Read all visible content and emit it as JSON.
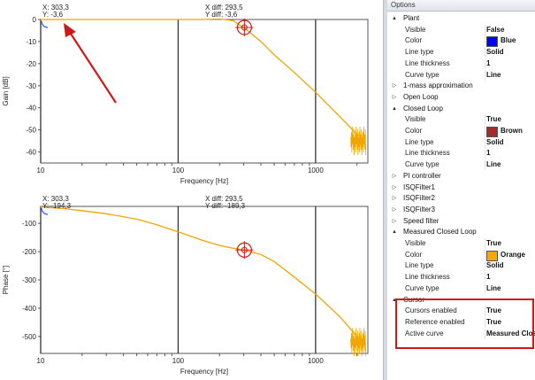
{
  "gain_plot": {
    "ylabel": "Gain [dB]",
    "xlabel": "Frequency [Hz]",
    "cursor_x": "X: 303,3",
    "cursor_y": "Y: -3,6",
    "diff_x": "X diff: 293,5",
    "diff_y": "Y diff: -3,6",
    "y_ticks": [
      "0",
      "-10",
      "-20",
      "-30",
      "-40",
      "-50",
      "-60"
    ],
    "x_ticks": [
      "10",
      "100",
      "1000"
    ]
  },
  "phase_plot": {
    "ylabel": "Phase [°]",
    "xlabel": "Frequency [Hz]",
    "cursor_x": "X: 303,3",
    "cursor_y": "Y: -194,3",
    "diff_x": "X diff: 293,5",
    "diff_y": "Y diff: -189,3",
    "y_ticks": [
      "-100",
      "-200",
      "-300",
      "-400",
      "-500"
    ],
    "x_ticks": [
      "10",
      "100",
      "1000"
    ]
  },
  "chart_data": [
    {
      "type": "line",
      "ylabel": "Gain [dB]",
      "xlabel": "Frequency [Hz]",
      "xscale": "log",
      "xlim": [
        10,
        2400
      ],
      "ylim": [
        -65,
        0
      ],
      "grid": "vertical at decades",
      "series": [
        {
          "color": "#f0a500",
          "x": [
            10,
            20,
            50,
            100,
            150,
            200,
            250,
            300,
            400,
            500,
            700,
            1000,
            1500,
            2000,
            2300
          ],
          "y": [
            0,
            0,
            0,
            0,
            0,
            0.2,
            -0.5,
            -3.6,
            -10,
            -16,
            -24,
            -33,
            -44,
            -52,
            -55
          ]
        }
      ],
      "annotations": [
        "X: 303,3",
        "Y: -3,6",
        "X diff: 293,5",
        "Y diff: -3,6"
      ]
    },
    {
      "type": "line",
      "ylabel": "Phase [°]",
      "xlabel": "Frequency [Hz]",
      "xscale": "log",
      "xlim": [
        10,
        2400
      ],
      "ylim": [
        -560,
        -40
      ],
      "grid": "vertical at decades",
      "series": [
        {
          "color": "#f0a500",
          "x": [
            10,
            15,
            20,
            30,
            50,
            70,
            100,
            150,
            200,
            250,
            300,
            400,
            500,
            700,
            1000,
            1500,
            2000,
            2300
          ],
          "y": [
            -42,
            -48,
            -55,
            -66,
            -85,
            -105,
            -130,
            -160,
            -178,
            -188,
            -194,
            -210,
            -235,
            -290,
            -350,
            -430,
            -500,
            -520
          ]
        }
      ],
      "annotations": [
        "X: 303,3",
        "Y: -194,3",
        "X diff: 293,5",
        "Y diff: -189,3"
      ]
    }
  ],
  "colors": {
    "curve": "#f0a500",
    "cursor": "#d01818",
    "arrow": "#d01818",
    "grid": "#333333"
  },
  "options": {
    "title": "Options",
    "rows": [
      {
        "kind": "cat",
        "toggle": "▲",
        "label": "Plant"
      },
      {
        "kind": "prop",
        "name": "Visible",
        "value": "False"
      },
      {
        "kind": "color",
        "name": "Color",
        "value": "Blue",
        "swatch": "#0000ff"
      },
      {
        "kind": "prop",
        "name": "Line type",
        "value": "Solid"
      },
      {
        "kind": "prop",
        "name": "Line thickness",
        "value": "1"
      },
      {
        "kind": "prop",
        "name": "Curve type",
        "value": "Line"
      },
      {
        "kind": "cat",
        "toggle": "▷",
        "label": "1-mass approximation"
      },
      {
        "kind": "cat",
        "toggle": "▷",
        "label": "Open Loop"
      },
      {
        "kind": "cat",
        "toggle": "▲",
        "label": "Closed Loop"
      },
      {
        "kind": "prop",
        "name": "Visible",
        "value": "True"
      },
      {
        "kind": "color",
        "name": "Color",
        "value": "Brown",
        "swatch": "#a52a2a"
      },
      {
        "kind": "prop",
        "name": "Line type",
        "value": "Solid"
      },
      {
        "kind": "prop",
        "name": "Line thickness",
        "value": "1"
      },
      {
        "kind": "prop",
        "name": "Curve type",
        "value": "Line"
      },
      {
        "kind": "cat",
        "toggle": "▷",
        "label": "PI controller"
      },
      {
        "kind": "cat",
        "toggle": "▷",
        "label": "ISQFilter1"
      },
      {
        "kind": "cat",
        "toggle": "▷",
        "label": "ISQFilter2"
      },
      {
        "kind": "cat",
        "toggle": "▷",
        "label": "ISQFilter3"
      },
      {
        "kind": "cat",
        "toggle": "▷",
        "label": "Speed filter"
      },
      {
        "kind": "cat",
        "toggle": "▲",
        "label": "Measured Closed Loop"
      },
      {
        "kind": "prop",
        "name": "Visible",
        "value": "True"
      },
      {
        "kind": "color",
        "name": "Color",
        "value": "Orange",
        "swatch": "#ffa500"
      },
      {
        "kind": "prop",
        "name": "Line type",
        "value": "Solid"
      },
      {
        "kind": "prop",
        "name": "Line thickness",
        "value": "1"
      },
      {
        "kind": "prop",
        "name": "Curve type",
        "value": "Line"
      },
      {
        "kind": "cat",
        "toggle": "▲",
        "label": "Cursor"
      },
      {
        "kind": "prop",
        "name": "Cursors enabled",
        "value": "True"
      },
      {
        "kind": "prop",
        "name": "Reference enabled",
        "value": "True"
      },
      {
        "kind": "prop",
        "name": "Active curve",
        "value": "Measured Clos"
      }
    ]
  }
}
